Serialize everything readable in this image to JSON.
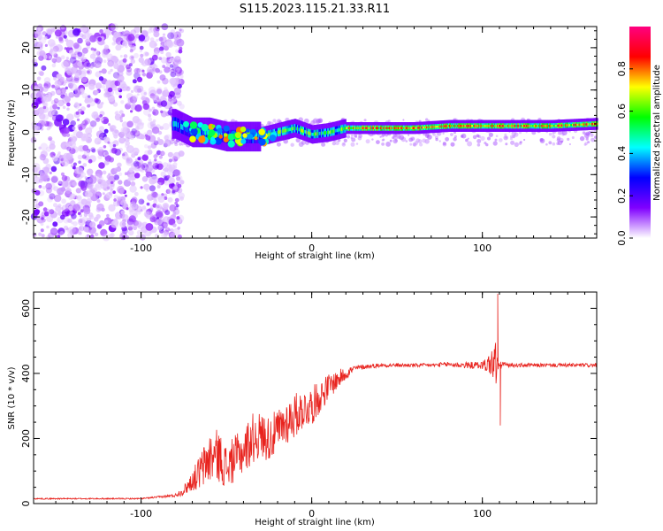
{
  "figure": {
    "title": "S115.2023.115.21.33.R11"
  },
  "chart_data": [
    {
      "type": "heatmap",
      "xlabel": "Height of straight line (km)",
      "ylabel": "Frequency (Hz)",
      "xlim": [
        -163,
        167
      ],
      "ylim": [
        -25,
        25
      ],
      "xticks": [
        -100,
        0,
        100
      ],
      "yticks": [
        -20,
        -10,
        0,
        10,
        20
      ],
      "ridge": {
        "description_points_x": [
          -80,
          -70,
          -60,
          -50,
          -40,
          -30,
          -20,
          -10,
          0,
          10,
          20,
          40,
          60,
          80,
          100,
          120,
          140,
          167
        ],
        "frequency_hz": [
          2.0,
          0.0,
          0.0,
          -1.0,
          -1.0,
          -1.0,
          0.0,
          1.0,
          -0.5,
          0.0,
          1.0,
          1.0,
          1.0,
          1.5,
          1.5,
          1.5,
          1.5,
          2.0
        ]
      },
      "noise_region_x": [
        -163,
        -80
      ],
      "colorbar": {
        "label": "Normalized spectral amplitude",
        "range": [
          0,
          1
        ],
        "ticks": [
          "0.0",
          "0.2",
          "0.4",
          "0.6",
          "0.8"
        ],
        "tick_values": [
          0.0,
          0.2,
          0.4,
          0.6,
          0.8
        ],
        "colors": [
          "#ffffff",
          "#8000ff",
          "#0000ff",
          "#00ffff",
          "#00ff00",
          "#ffff00",
          "#ff0000",
          "#ff0080"
        ]
      }
    },
    {
      "type": "line",
      "xlabel": "Height of straight line (km)",
      "ylabel": "SNR (10 * v/v)",
      "xlim": [
        -163,
        167
      ],
      "ylim": [
        0,
        650
      ],
      "xticks": [
        -100,
        0,
        100
      ],
      "yticks": [
        0,
        200,
        400,
        600
      ],
      "series": [
        {
          "color": "#e8231e",
          "x": [
            -163,
            -140,
            -120,
            -100,
            -90,
            -80,
            -75,
            -70,
            -65,
            -60,
            -55,
            -50,
            -45,
            -40,
            -35,
            -30,
            -25,
            -20,
            -15,
            -10,
            -5,
            0,
            5,
            10,
            15,
            20,
            25,
            30,
            40,
            50,
            60,
            70,
            80,
            90,
            100,
            105,
            108,
            110,
            112,
            115,
            120,
            140,
            167
          ],
          "y": [
            15,
            15,
            15,
            15,
            20,
            25,
            40,
            70,
            100,
            140,
            150,
            110,
            140,
            160,
            200,
            210,
            200,
            220,
            250,
            270,
            290,
            300,
            330,
            360,
            380,
            400,
            415,
            420,
            425,
            425,
            425,
            425,
            428,
            425,
            425,
            430,
            430,
            420,
            430,
            425,
            425,
            425,
            425
          ],
          "noise_amplitude": [
            2,
            2,
            2,
            2,
            3,
            5,
            15,
            30,
            60,
            80,
            80,
            70,
            70,
            70,
            80,
            70,
            70,
            70,
            70,
            70,
            60,
            60,
            50,
            40,
            30,
            20,
            10,
            8,
            6,
            6,
            6,
            6,
            8,
            10,
            12,
            40,
            80,
            15,
            8,
            6,
            6,
            6,
            6
          ],
          "spikes": [
            {
              "x": 109,
              "y": 645
            },
            {
              "x": 110.5,
              "y": 240
            }
          ]
        }
      ]
    }
  ]
}
